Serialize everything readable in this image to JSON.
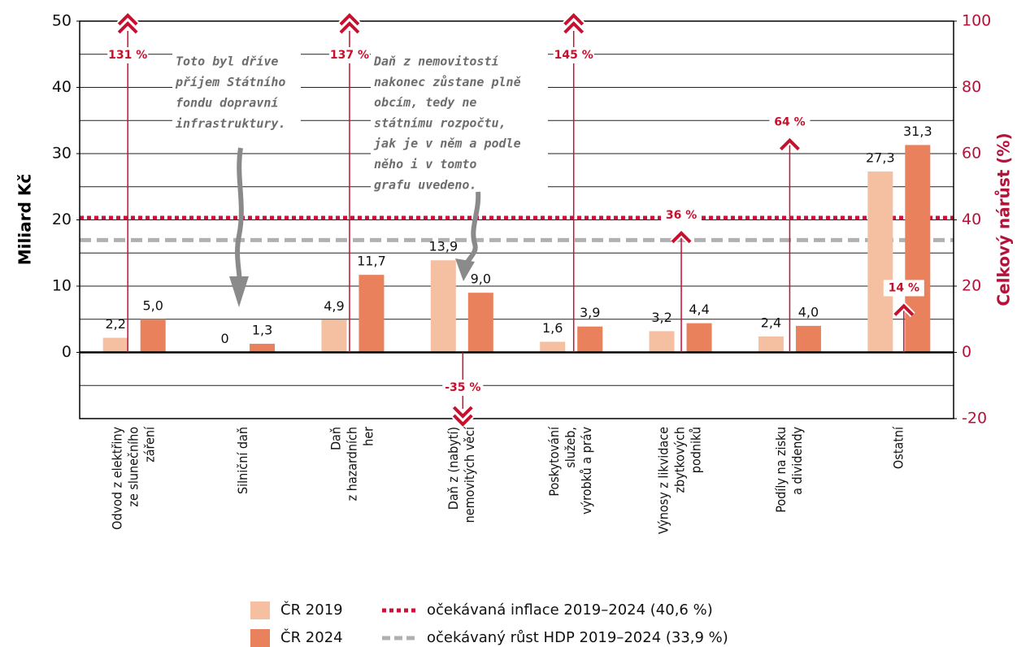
{
  "chart_data": {
    "type": "bar",
    "ylabel": "Miliard Kč",
    "y2label": "Celkový nárůst (%)",
    "categories": [
      [
        "Odvod z elektřiny",
        "ze slunečního",
        "záření"
      ],
      [
        "Silniční daň"
      ],
      [
        "Daň",
        "z hazardních",
        "her"
      ],
      [
        "Daň z (nabytí)",
        "nemovitých věcí"
      ],
      [
        "Poskytování",
        "služeb,",
        "výrobků a práv"
      ],
      [
        "Výnosy z likvidace",
        "zbytkových",
        "podniků"
      ],
      [
        "Podíly na zisku",
        "a dividendy"
      ],
      [
        "Ostatní"
      ]
    ],
    "series": [
      {
        "name": "ČR 2019",
        "color": "#f5c0a2",
        "values": [
          2.2,
          0,
          4.9,
          13.9,
          1.6,
          3.2,
          2.4,
          27.3
        ],
        "value_labels": [
          "2,2",
          "0",
          "4,9",
          "13,9",
          "1,6",
          "3,2",
          "2,4",
          "27,3"
        ]
      },
      {
        "name": "ČR 2024",
        "color": "#e8815c",
        "values": [
          5.0,
          1.3,
          11.7,
          9.0,
          3.9,
          4.4,
          4.0,
          31.3
        ],
        "value_labels": [
          "5,0",
          "1,3",
          "11,7",
          "9,0",
          "3,9",
          "4,4",
          "4,0",
          "31,3"
        ]
      }
    ],
    "growth": {
      "axis": "y2",
      "color": "#c8102e",
      "values": [
        131,
        null,
        137,
        -35,
        145,
        36,
        64,
        14
      ],
      "value_labels": [
        "131 %",
        null,
        "137 %",
        "-35 %",
        "145 %",
        "36 %",
        "64 %",
        "14 %"
      ]
    },
    "reference_lines": [
      {
        "name": "očekávaná inflace 2019–2024 (40,6 %)",
        "value": 40.6,
        "axis": "y2",
        "color": "#d0103a",
        "style": "dotted"
      },
      {
        "name": "očekávaný růst HDP 2019–2024 (33,9 %)",
        "value": 33.9,
        "axis": "y2",
        "color": "#b0b0b0",
        "style": "dashed"
      }
    ],
    "ylim": [
      -10,
      50
    ],
    "yticks": [
      0,
      10,
      20,
      30,
      40,
      50
    ],
    "y2lim": [
      -20,
      100
    ],
    "y2ticks": [
      -20,
      0,
      20,
      40,
      60,
      80,
      100
    ],
    "grid": true,
    "minor_grid": true,
    "annotations": [
      {
        "lines": [
          "Toto byl dříve",
          "příjem Státního",
          "fondu dopravní",
          "infrastruktury."
        ]
      },
      {
        "lines": [
          "Daň z nemovitostí",
          "nakonec zůstane plně",
          "obcím, tedy ne",
          "státnímu rozpočtu,",
          "jak je v něm a podle",
          "něho i v tomto",
          "grafu uvedeno."
        ]
      }
    ]
  }
}
